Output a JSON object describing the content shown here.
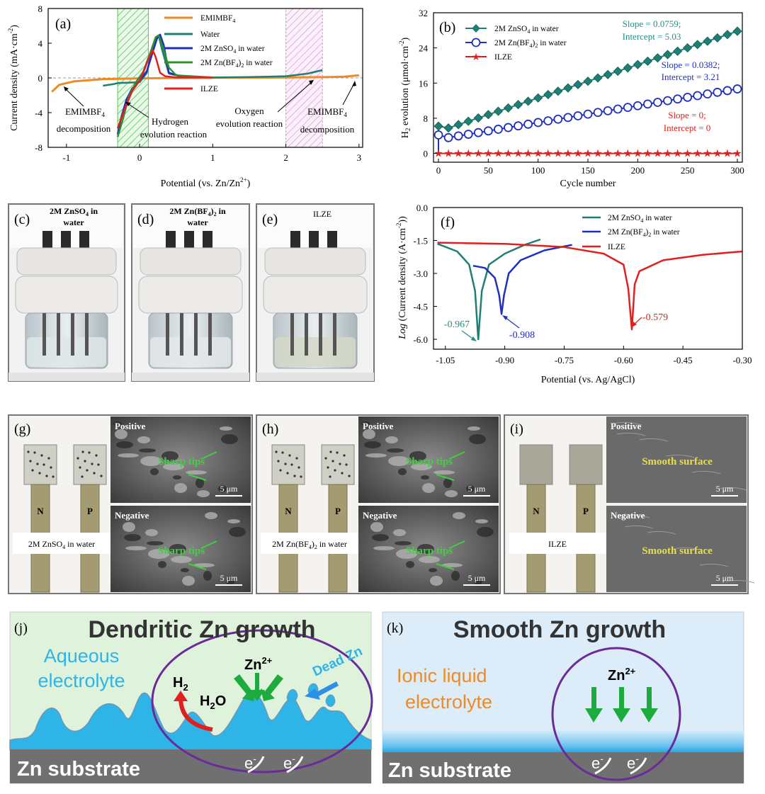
{
  "panel_labels": {
    "a": "(a)",
    "b": "(b)",
    "c": "(c)",
    "d": "(d)",
    "e": "(e)",
    "f": "(f)",
    "g": "(g)",
    "h": "(h)",
    "i": "(i)",
    "j": "(j)",
    "k": "(k)"
  },
  "colors": {
    "orange": "#f08a24",
    "teal": "#1f7f74",
    "blue": "#1f2fbf",
    "green": "#2f8f2f",
    "red": "#e02020",
    "green_band": "#3fbf3f",
    "pink_band": "#d070c0"
  },
  "chart_data": [
    {
      "panel": "a",
      "type": "line",
      "xlabel": "Potential (vs. Zn/Zn",
      "xlabel_sup": "2+",
      "xlabel_end": ")",
      "ylabel": "Current density (mA·cm",
      "ylabel_sup": "-2",
      "ylabel_end": ")",
      "xlim": [
        -1.25,
        3.05
      ],
      "ylim": [
        -8,
        8
      ],
      "xticks": [
        -1,
        0,
        1,
        2,
        3
      ],
      "yticks": [
        -8,
        -4,
        0,
        4,
        8
      ],
      "bands": [
        {
          "x": [
            -0.3,
            0.12
          ],
          "name": "hydrogen"
        },
        {
          "x": [
            2.0,
            2.5
          ],
          "name": "oxygen"
        }
      ],
      "legend": [
        "EMIMBF4",
        "Water",
        "2M ZnSO4 in water",
        "2M Zn(BF4)2 in water",
        "ILZE"
      ],
      "series": [
        {
          "name": "EMIMBF4",
          "color": "orange",
          "points": [
            [
              -1.2,
              -1.6
            ],
            [
              -1.1,
              -0.8
            ],
            [
              -0.9,
              -0.4
            ],
            [
              -0.5,
              -0.15
            ],
            [
              0,
              -0.05
            ],
            [
              1,
              0.02
            ],
            [
              2,
              0.05
            ],
            [
              2.6,
              0.1
            ],
            [
              2.8,
              0.15
            ],
            [
              3.0,
              0.3
            ]
          ]
        },
        {
          "name": "Water",
          "color": "teal",
          "points": [
            [
              -0.5,
              -0.9
            ],
            [
              -0.35,
              -0.7
            ],
            [
              -0.3,
              -0.6
            ],
            [
              0.0,
              -0.5
            ],
            [
              0.1,
              0.6
            ],
            [
              0.15,
              2.5
            ],
            [
              0.22,
              4.5
            ],
            [
              0.26,
              4.9
            ],
            [
              0.3,
              3.5
            ],
            [
              0.4,
              0.5
            ],
            [
              0.6,
              0.1
            ],
            [
              1.0,
              0.05
            ],
            [
              1.5,
              0.1
            ],
            [
              2.0,
              0.2
            ],
            [
              2.3,
              0.5
            ],
            [
              2.5,
              0.9
            ]
          ]
        },
        {
          "name": "2M ZnSO4 in water",
          "color": "blue",
          "points": [
            [
              -0.3,
              -6.5
            ],
            [
              -0.25,
              -4.5
            ],
            [
              -0.18,
              -2.5
            ],
            [
              -0.1,
              -1.2
            ],
            [
              0.0,
              -0.3
            ],
            [
              0.1,
              0.8
            ],
            [
              0.18,
              3
            ],
            [
              0.24,
              4.6
            ],
            [
              0.28,
              5
            ],
            [
              0.33,
              3.8
            ],
            [
              0.4,
              0.6
            ],
            [
              0.6,
              0.1
            ],
            [
              1.0,
              0.05
            ]
          ]
        },
        {
          "name": "2M Zn(BF4)2 in water",
          "color": "green",
          "points": [
            [
              -0.3,
              -6.8
            ],
            [
              -0.22,
              -4.5
            ],
            [
              -0.15,
              -2.2
            ],
            [
              -0.05,
              -0.5
            ],
            [
              0.05,
              0.7
            ],
            [
              0.15,
              3
            ],
            [
              0.22,
              4.7
            ],
            [
              0.26,
              4.9
            ],
            [
              0.32,
              3.5
            ],
            [
              0.4,
              1.2
            ],
            [
              0.5,
              0.3
            ],
            [
              1.0,
              0.05
            ]
          ]
        },
        {
          "name": "ILZE",
          "color": "red",
          "points": [
            [
              -0.3,
              -5.8
            ],
            [
              -0.2,
              -3.5
            ],
            [
              -0.1,
              -1.5
            ],
            [
              0.0,
              -0.3
            ],
            [
              0.05,
              0.6
            ],
            [
              0.12,
              2.2
            ],
            [
              0.18,
              3.2
            ],
            [
              0.22,
              2.4
            ],
            [
              0.28,
              0.6
            ],
            [
              0.35,
              0.2
            ],
            [
              0.5,
              0.05
            ],
            [
              1.0,
              0.05
            ]
          ]
        }
      ],
      "annotations": [
        {
          "line1": "EMIMBF",
          "line1_sub": "4",
          "line2": "decomposition"
        },
        {
          "line1": "Hydrogen",
          "line2": "evolution reaction"
        },
        {
          "line1": "Oxygen",
          "line2": "evolution reaction"
        },
        {
          "line1": "EMIMBF",
          "line1_sub": "4",
          "line2": "decomposition"
        }
      ]
    },
    {
      "panel": "b",
      "type": "line",
      "xlabel": "Cycle number",
      "ylabel": "H",
      "ylabel_sub": "2",
      "ylabel_end": " evolution (μmol·cm",
      "ylabel_sup": "-2",
      "ylabel_end2": ")",
      "xlim": [
        -5,
        305
      ],
      "ylim": [
        -2,
        32
      ],
      "xticks": [
        0,
        50,
        100,
        150,
        200,
        250,
        300
      ],
      "yticks": [
        0,
        8,
        16,
        24,
        32
      ],
      "series": [
        {
          "name": "2M ZnSO4 in water",
          "color": "teal",
          "marker": "diamond",
          "slope": 0.0759,
          "intercept": 5.03
        },
        {
          "name": "2M Zn(BF4)2 in water",
          "color": "blue",
          "marker": "circle",
          "slope": 0.0382,
          "intercept": 3.21
        },
        {
          "name": "ILZE",
          "color": "red",
          "marker": "star",
          "slope": 0,
          "intercept": 0
        }
      ],
      "legend": [
        "2M ZnSO",
        "4",
        " in water",
        "2M Zn(BF",
        "4",
        ")",
        "2",
        " in water",
        "ILZE"
      ],
      "fit_text": [
        {
          "line1": "Slope = 0.0759;",
          "line2": "Intercept = 5.03"
        },
        {
          "line1": "Slope = 0.0382;",
          "line2": "Intercept = 3.21"
        },
        {
          "line1": "Slope = 0;",
          "line2": "Intercept = 0"
        }
      ]
    },
    {
      "panel": "f",
      "type": "line",
      "xlabel": "Potential (vs. Ag/AgCl)",
      "ylabel": "Log (Current density (A·cm",
      "ylabel_sup": "-2",
      "ylabel_end": "))",
      "xlim": [
        -1.08,
        -0.3
      ],
      "ylim": [
        -6.45,
        0
      ],
      "xticks": [
        -1.05,
        -0.9,
        -0.75,
        -0.6,
        -0.45,
        -0.3
      ],
      "ytick_labels": [
        "0.0",
        "-1.5",
        "-3.0",
        "-4.5",
        "-6.0"
      ],
      "yticks": [
        0,
        -1.5,
        -3,
        -4.5,
        -6
      ],
      "xtick_labels": [
        "-1.05",
        "-0.90",
        "-0.75",
        "-0.60",
        "-0.45",
        "-0.30"
      ],
      "series": [
        {
          "name": "2M ZnSO4 in water",
          "color": "teal",
          "e_corr": -0.967,
          "min": -6.0,
          "left": [
            [
              -1.07,
              -1.65
            ],
            [
              -1.02,
              -2.0
            ],
            [
              -0.99,
              -2.6
            ],
            [
              -0.975,
              -3.8
            ]
          ],
          "right": [
            [
              -0.958,
              -3.8
            ],
            [
              -0.94,
              -2.6
            ],
            [
              -0.9,
              -2.1
            ],
            [
              -0.85,
              -1.7
            ],
            [
              -0.81,
              -1.45
            ]
          ]
        },
        {
          "name": "2M Zn(BF4)2 in water",
          "color": "blue",
          "e_corr": -0.908,
          "min": -4.85,
          "left": [
            [
              -0.98,
              -2.65
            ],
            [
              -0.95,
              -2.75
            ],
            [
              -0.925,
              -3.2
            ],
            [
              -0.914,
              -4.0
            ]
          ],
          "right": [
            [
              -0.902,
              -4.0
            ],
            [
              -0.89,
              -3.0
            ],
            [
              -0.86,
              -2.4
            ],
            [
              -0.8,
              -1.95
            ],
            [
              -0.73,
              -1.7
            ]
          ]
        },
        {
          "name": "ILZE",
          "color": "red",
          "e_corr": -0.579,
          "min": -5.55,
          "left": [
            [
              -1.07,
              -1.6
            ],
            [
              -0.9,
              -1.65
            ],
            [
              -0.75,
              -1.8
            ],
            [
              -0.65,
              -2.1
            ],
            [
              -0.6,
              -2.6
            ],
            [
              -0.588,
              -3.7
            ]
          ],
          "right": [
            [
              -0.572,
              -3.5
            ],
            [
              -0.56,
              -2.9
            ],
            [
              -0.5,
              -2.4
            ],
            [
              -0.4,
              -2.15
            ],
            [
              -0.3,
              -2.0
            ]
          ]
        }
      ],
      "legend": [
        "2M ZnSO",
        "4",
        " in water",
        "2M Zn(BF",
        "4",
        ")",
        "2",
        " in water",
        "ILZE"
      ],
      "annotations": [
        "-0.967",
        "-0.908",
        "-0.579"
      ]
    }
  ],
  "photos": {
    "c": {
      "title1": "2M ZnSO",
      "title_sub": "4",
      "title2": " in",
      "title3": "water"
    },
    "d": {
      "title1": "2M Zn(BF",
      "title_sub": "4",
      "title2": ")",
      "title_sub2": "2",
      "title3": " in",
      "title4": "water"
    },
    "e": {
      "title1": "ILZE"
    }
  },
  "sem": {
    "g": {
      "caption": "2M ZnSO",
      "caption_sub": "4",
      "caption_end": " in water",
      "pos": "Positive",
      "neg": "Negative",
      "pos_text": "Sharp tips",
      "neg_text": "Sharp tips",
      "scale": "5 μm",
      "n": "N",
      "p": "P"
    },
    "h": {
      "caption": "2M Zn(BF",
      "caption_sub": "4",
      "caption_mid": ")",
      "caption_sub2": "2",
      "caption_end": " in water",
      "pos": "Positive",
      "neg": "Negative",
      "pos_text": "Sharp tips",
      "neg_text": "Sharp tips",
      "scale": "5 μm",
      "n": "N",
      "p": "P"
    },
    "i": {
      "caption": "ILZE",
      "pos": "Positive",
      "neg": "Negative",
      "pos_text": "Smooth surface",
      "neg_text": "Smooth surface",
      "scale": "5 μm",
      "n": "N",
      "p": "P"
    }
  },
  "schematic_j": {
    "title": "Dendritic Zn growth",
    "electrolyte1": "Aqueous",
    "electrolyte2": "electrolyte",
    "substrate": "Zn substrate",
    "ion": "Zn",
    "ion_sup": "2+",
    "h2": "H",
    "h2_sub": "2",
    "h2o": "H",
    "h2o_sub": "2",
    "h2o_end": "O",
    "dead": "Dead Zn",
    "e": "e",
    "e_sup": "-"
  },
  "schematic_k": {
    "title": "Smooth Zn growth",
    "electrolyte1": "Ionic liquid",
    "electrolyte2": "electrolyte",
    "substrate": "Zn substrate",
    "ion": "Zn",
    "ion_sup": "2+",
    "e": "e",
    "e_sup": "-"
  }
}
